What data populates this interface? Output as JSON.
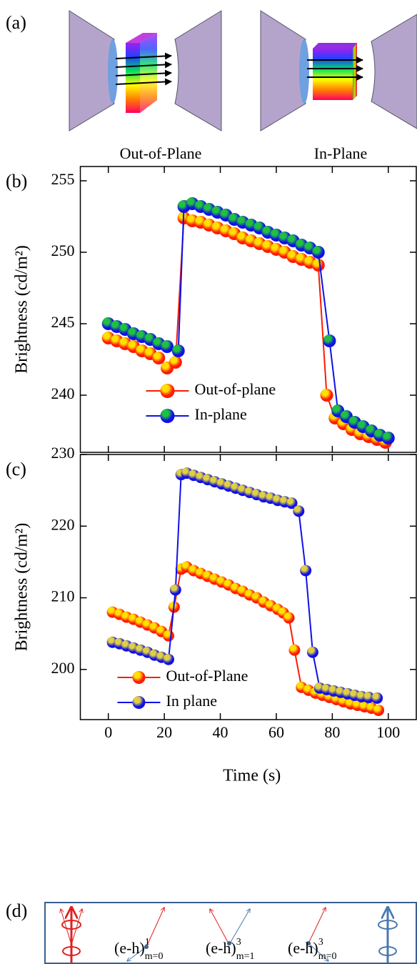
{
  "panel_labels": [
    "(a)",
    "(b)",
    "(c)",
    "(d)"
  ],
  "diagram_a": {
    "labels": [
      "Out-of-Plane",
      "In-Plane"
    ]
  },
  "diagram_d": {
    "labels": [
      {
        "base": "(e-h)",
        "sup": "1",
        "sub": "m=0"
      },
      {
        "base": "(e-h)",
        "sup": "3",
        "sub": "m=1"
      },
      {
        "base": "(e-h)",
        "sup": "3",
        "sub": "m=0"
      }
    ]
  },
  "chart_data": [
    {
      "type": "line",
      "ylabel": "Brightness (cd/m²)",
      "xlim": [
        -10,
        110
      ],
      "ylim": [
        236,
        256
      ],
      "xticks": [
        0,
        20,
        40,
        60,
        80,
        100
      ],
      "yticks": [
        240,
        245,
        250,
        255
      ],
      "legend": "lower left",
      "series": [
        {
          "name": "Out-of-plane",
          "color": "#ff1a00",
          "highlight": "#ffe000",
          "x": [
            0,
            3,
            6,
            9,
            12,
            15,
            18,
            21,
            24,
            27,
            30,
            33,
            36,
            39,
            42,
            45,
            48,
            51,
            54,
            57,
            60,
            63,
            66,
            69,
            72,
            75,
            78,
            81,
            84,
            87,
            90,
            93,
            96,
            99
          ],
          "values": [
            244.0,
            243.8,
            243.6,
            243.4,
            243.1,
            242.9,
            242.6,
            241.9,
            242.3,
            252.4,
            252.2,
            252.1,
            251.9,
            251.7,
            251.5,
            251.3,
            251.0,
            250.8,
            250.6,
            250.4,
            250.2,
            250.0,
            249.7,
            249.5,
            249.3,
            249.1,
            240.0,
            238.4,
            238.0,
            237.6,
            237.3,
            237.1,
            236.9,
            236.7
          ]
        },
        {
          "name": "In-plane",
          "color": "#1010e8",
          "highlight": "#20c040",
          "x": [
            0,
            3,
            6,
            9,
            12,
            15,
            18,
            21,
            25,
            27,
            30,
            33,
            36,
            39,
            42,
            45,
            48,
            51,
            54,
            57,
            60,
            63,
            66,
            69,
            72,
            75,
            79,
            82,
            85,
            88,
            91,
            94,
            97,
            100
          ],
          "values": [
            245.0,
            244.8,
            244.6,
            244.3,
            244.1,
            243.9,
            243.6,
            243.4,
            243.1,
            253.2,
            253.4,
            253.2,
            253.0,
            252.8,
            252.6,
            252.3,
            252.1,
            251.9,
            251.7,
            251.4,
            251.2,
            251.0,
            250.8,
            250.5,
            250.3,
            250.0,
            243.8,
            238.9,
            238.5,
            238.1,
            237.8,
            237.5,
            237.2,
            237.0
          ]
        }
      ]
    },
    {
      "type": "line",
      "ylabel": "Brightness (cd/m²)",
      "xlabel": "Time (s)",
      "xlim": [
        -10,
        110
      ],
      "ylim": [
        193,
        230
      ],
      "xticks": [
        0,
        20,
        40,
        60,
        80,
        100
      ],
      "yticks": [
        200,
        210,
        220,
        230
      ],
      "legend": "lower left",
      "series": [
        {
          "name": "Out-of-Plane",
          "color": "#ff1a00",
          "highlight": "#ffe000",
          "x": [
            1.5,
            4,
            6.5,
            9,
            11.5,
            14,
            16.5,
            19,
            21.5,
            23.5,
            26,
            28,
            30.5,
            33,
            35.5,
            38,
            40.5,
            43,
            45.5,
            48,
            50.5,
            53,
            55.5,
            58,
            60.5,
            62.5,
            64.5,
            66.5,
            69,
            71.5,
            74,
            76.5,
            79,
            81.5,
            84,
            86.5,
            89,
            91.5,
            94,
            96.5
          ],
          "values": [
            208.0,
            207.7,
            207.3,
            207.0,
            206.6,
            206.2,
            205.8,
            205.3,
            204.7,
            208.7,
            214.0,
            214.3,
            213.8,
            213.4,
            213.0,
            212.6,
            212.2,
            211.8,
            211.3,
            210.9,
            210.4,
            210.0,
            209.4,
            208.9,
            208.4,
            207.9,
            207.2,
            202.7,
            197.5,
            197.1,
            196.7,
            196.4,
            196.1,
            195.8,
            195.5,
            195.2,
            195.0,
            194.8,
            194.6,
            194.3
          ]
        },
        {
          "name": "In plane",
          "color": "#1010e8",
          "highlight": "#e0d040",
          "x": [
            1.5,
            4,
            6.5,
            9,
            11.5,
            14,
            16.5,
            19,
            21.5,
            24,
            26,
            28,
            30.5,
            33,
            35.5,
            38,
            40.5,
            43,
            45.5,
            48,
            50.5,
            53,
            55.5,
            58,
            60.5,
            63,
            65.5,
            68,
            70.5,
            73,
            75.5,
            78,
            80.5,
            83,
            85.5,
            88,
            90.5,
            93,
            96
          ],
          "values": [
            203.8,
            203.6,
            203.3,
            203.0,
            202.7,
            202.4,
            202.0,
            201.7,
            201.4,
            211.1,
            227.2,
            227.4,
            227.1,
            226.8,
            226.5,
            226.2,
            225.9,
            225.6,
            225.3,
            225.0,
            224.7,
            224.4,
            224.1,
            223.9,
            223.6,
            223.4,
            223.2,
            222.1,
            213.8,
            202.4,
            197.4,
            197.2,
            197.0,
            196.8,
            196.6,
            196.4,
            196.2,
            196.1,
            196.0
          ]
        }
      ]
    }
  ]
}
